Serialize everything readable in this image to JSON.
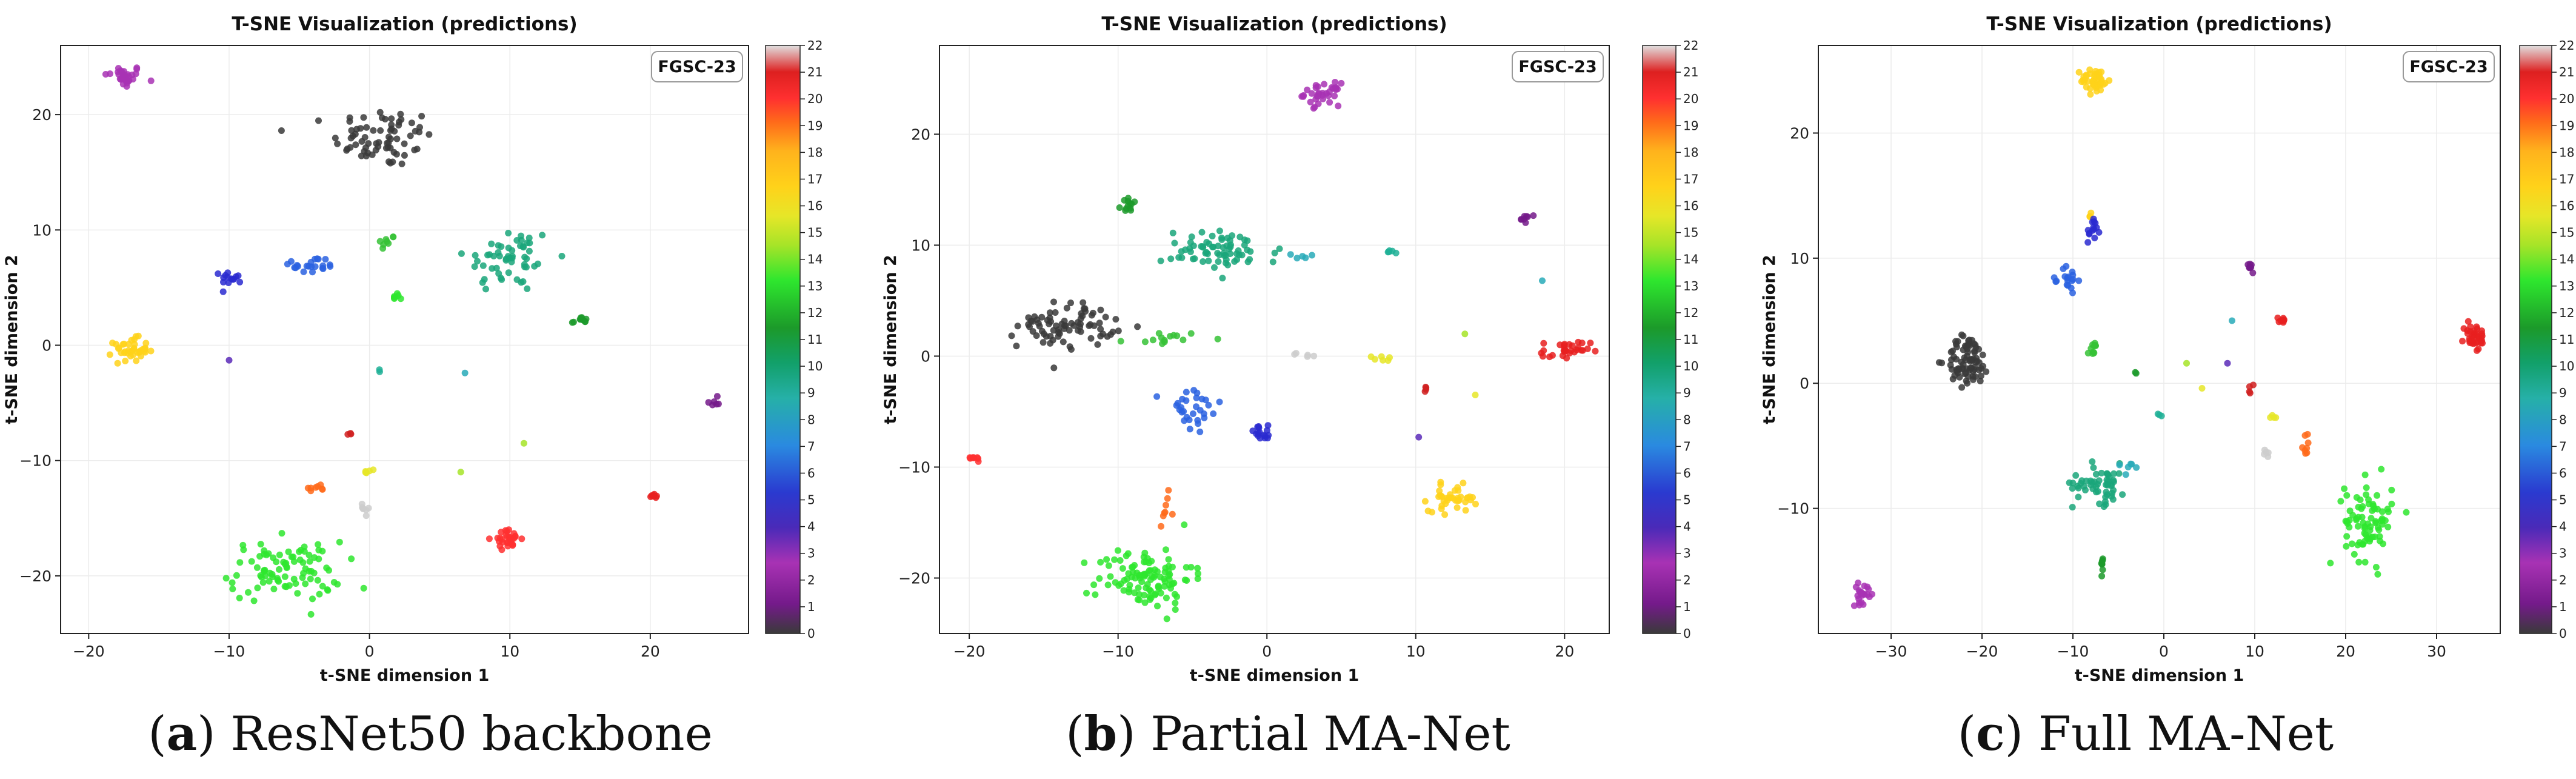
{
  "chart_data": [
    {
      "type": "scatter",
      "title": "T-SNE Visualization (predictions)",
      "xlabel": "t-SNE dimension 1",
      "ylabel": "t-SNE dimension 2",
      "xlim": [
        -22,
        27
      ],
      "ylim": [
        -25,
        26
      ],
      "xticks": [
        -20,
        -10,
        0,
        10,
        20
      ],
      "yticks": [
        -20,
        -10,
        0,
        10,
        20
      ],
      "grid": true,
      "legend": "FGSC-23",
      "legend_position": "top-right",
      "caption_letter": "a",
      "caption": "ResNet50 backbone",
      "colorbar": {
        "min": 0,
        "max": 22,
        "ticks": [
          "0",
          "1",
          "2",
          "3",
          "4",
          "5",
          "6",
          "7",
          "8",
          "9",
          "10",
          "11",
          "12",
          "13",
          "14",
          "15",
          "16",
          "17",
          "18",
          "19",
          "20",
          "21",
          "22"
        ]
      },
      "clusters": [
        {
          "cls": 2,
          "x": -17.5,
          "y": 23.3,
          "sx": 0.7,
          "sy": 0.5,
          "n": 30
        },
        {
          "cls": 0,
          "x": 1.0,
          "y": 18.0,
          "sx": 1.8,
          "sy": 1.3,
          "n": 70
        },
        {
          "cls": 9,
          "x": 10.0,
          "y": 7.5,
          "sx": 1.6,
          "sy": 1.5,
          "n": 55
        },
        {
          "cls": 5,
          "x": -4.2,
          "y": 6.9,
          "sx": 1.0,
          "sy": 0.4,
          "n": 22
        },
        {
          "cls": 4,
          "x": -9.8,
          "y": 5.9,
          "sx": 0.4,
          "sy": 0.3,
          "n": 14
        },
        {
          "cls": 12,
          "x": 1.2,
          "y": 8.9,
          "sx": 0.3,
          "sy": 0.4,
          "n": 8
        },
        {
          "cls": 13,
          "x": 2.0,
          "y": 4.2,
          "sx": 0.3,
          "sy": 0.2,
          "n": 6
        },
        {
          "cls": 11,
          "x": 15.0,
          "y": 2.1,
          "sx": 0.3,
          "sy": 0.2,
          "n": 10
        },
        {
          "cls": 16,
          "x": -17.0,
          "y": -0.4,
          "sx": 0.6,
          "sy": 0.5,
          "n": 40
        },
        {
          "cls": 3,
          "x": -10.0,
          "y": -1.3,
          "sx": 0.1,
          "sy": 0.1,
          "n": 1
        },
        {
          "cls": 8,
          "x": 0.7,
          "y": -2.2,
          "sx": 0.1,
          "sy": 0.1,
          "n": 2
        },
        {
          "cls": 7,
          "x": 6.8,
          "y": -2.4,
          "sx": 0.1,
          "sy": 0.1,
          "n": 1
        },
        {
          "cls": 1,
          "x": 24.5,
          "y": -4.9,
          "sx": 0.2,
          "sy": 0.2,
          "n": 6
        },
        {
          "cls": 21,
          "x": -1.3,
          "y": -7.7,
          "sx": 0.2,
          "sy": 0.1,
          "n": 3
        },
        {
          "cls": 15,
          "x": -0.2,
          "y": -11.0,
          "sx": 0.3,
          "sy": 0.2,
          "n": 5
        },
        {
          "cls": 14,
          "x": 6.5,
          "y": -11.0,
          "sx": 0.1,
          "sy": 0.1,
          "n": 1
        },
        {
          "cls": 14,
          "x": 11.0,
          "y": -8.5,
          "sx": 0.1,
          "sy": 0.1,
          "n": 1
        },
        {
          "cls": 18,
          "x": -3.7,
          "y": -12.4,
          "sx": 0.4,
          "sy": 0.3,
          "n": 8
        },
        {
          "cls": 22,
          "x": -0.1,
          "y": -14.0,
          "sx": 0.2,
          "sy": 0.5,
          "n": 7
        },
        {
          "cls": 19,
          "x": 9.8,
          "y": -16.8,
          "sx": 0.5,
          "sy": 0.4,
          "n": 30
        },
        {
          "cls": 20,
          "x": 20.3,
          "y": -13.0,
          "sx": 0.2,
          "sy": 0.2,
          "n": 8
        },
        {
          "cls": 13,
          "x": -6.0,
          "y": -19.6,
          "sx": 2.0,
          "sy": 1.3,
          "n": 90
        }
      ]
    },
    {
      "type": "scatter",
      "title": "T-SNE Visualization (predictions)",
      "xlabel": "t-SNE dimension 1",
      "ylabel": "t-SNE dimension 2",
      "xlim": [
        -22,
        23
      ],
      "ylim": [
        -25,
        28
      ],
      "xticks": [
        -20,
        -10,
        0,
        10,
        20
      ],
      "yticks": [
        -20,
        -10,
        0,
        10,
        20
      ],
      "grid": true,
      "legend": "FGSC-23",
      "legend_position": "top-right",
      "caption_letter": "b",
      "caption": "Partial MA-Net",
      "colorbar": {
        "min": 0,
        "max": 22,
        "ticks": [
          "0",
          "1",
          "2",
          "3",
          "4",
          "5",
          "6",
          "7",
          "8",
          "9",
          "10",
          "11",
          "12",
          "13",
          "14",
          "15",
          "16",
          "17",
          "18",
          "19",
          "20",
          "21",
          "22"
        ]
      },
      "clusters": [
        {
          "cls": 2,
          "x": 3.7,
          "y": 23.6,
          "sx": 0.6,
          "sy": 0.5,
          "n": 35
        },
        {
          "cls": 11,
          "x": -9.2,
          "y": 13.6,
          "sx": 0.3,
          "sy": 0.3,
          "n": 12
        },
        {
          "cls": 9,
          "x": -3.0,
          "y": 9.5,
          "sx": 2.0,
          "sy": 0.9,
          "n": 70
        },
        {
          "cls": 7,
          "x": 2.5,
          "y": 9.0,
          "sx": 0.5,
          "sy": 0.1,
          "n": 5
        },
        {
          "cls": 8,
          "x": 8.5,
          "y": 9.4,
          "sx": 0.2,
          "sy": 0.1,
          "n": 5
        },
        {
          "cls": 1,
          "x": 17.3,
          "y": 12.4,
          "sx": 0.2,
          "sy": 0.2,
          "n": 8
        },
        {
          "cls": 7,
          "x": 18.5,
          "y": 6.8,
          "sx": 0.1,
          "sy": 0.1,
          "n": 1
        },
        {
          "cls": 0,
          "x": -13.5,
          "y": 2.8,
          "sx": 1.6,
          "sy": 1.0,
          "n": 80
        },
        {
          "cls": 12,
          "x": -6.8,
          "y": 1.6,
          "sx": 1.2,
          "sy": 0.3,
          "n": 14
        },
        {
          "cls": 22,
          "x": 2.8,
          "y": 0.1,
          "sx": 0.4,
          "sy": 0.1,
          "n": 5
        },
        {
          "cls": 15,
          "x": 7.6,
          "y": -0.2,
          "sx": 0.5,
          "sy": 0.1,
          "n": 6
        },
        {
          "cls": 14,
          "x": 13.3,
          "y": 2.0,
          "sx": 0.1,
          "sy": 0.1,
          "n": 1
        },
        {
          "cls": 20,
          "x": 20.1,
          "y": 0.4,
          "sx": 0.8,
          "sy": 0.5,
          "n": 30
        },
        {
          "cls": 19,
          "x": -19.8,
          "y": -9.2,
          "sx": 0.3,
          "sy": 0.1,
          "n": 8
        },
        {
          "cls": 5,
          "x": -5.0,
          "y": -5.0,
          "sx": 1.0,
          "sy": 1.2,
          "n": 30
        },
        {
          "cls": 4,
          "x": -0.3,
          "y": -6.9,
          "sx": 0.5,
          "sy": 0.3,
          "n": 16
        },
        {
          "cls": 21,
          "x": 10.6,
          "y": -3.0,
          "sx": 0.2,
          "sy": 0.3,
          "n": 4
        },
        {
          "cls": 3,
          "x": 10.2,
          "y": -7.3,
          "sx": 0.1,
          "sy": 0.1,
          "n": 1
        },
        {
          "cls": 15,
          "x": 14.0,
          "y": -3.5,
          "sx": 0.1,
          "sy": 0.1,
          "n": 1
        },
        {
          "cls": 16,
          "x": 12.5,
          "y": -12.8,
          "sx": 0.8,
          "sy": 0.6,
          "n": 40
        },
        {
          "cls": 18,
          "x": -6.8,
          "y": -13.8,
          "sx": 0.2,
          "sy": 0.7,
          "n": 8
        },
        {
          "cls": 13,
          "x": -8.2,
          "y": -20.0,
          "sx": 1.6,
          "sy": 1.4,
          "n": 110
        }
      ]
    },
    {
      "type": "scatter",
      "title": "T-SNE Visualization (predictions)",
      "xlabel": "t-SNE dimension 1",
      "ylabel": "t-SNE dimension 2",
      "xlim": [
        -38,
        37
      ],
      "ylim": [
        -20,
        27
      ],
      "xticks": [
        -30,
        -20,
        -10,
        0,
        10,
        20,
        30
      ],
      "yticks": [
        -10,
        0,
        10,
        20
      ],
      "grid": true,
      "legend": "FGSC-23",
      "legend_position": "top-right",
      "caption_letter": "c",
      "caption": "Full MA-Net",
      "colorbar": {
        "min": 0,
        "max": 22,
        "ticks": [
          "0",
          "1",
          "2",
          "3",
          "4",
          "5",
          "6",
          "7",
          "8",
          "9",
          "10",
          "11",
          "12",
          "13",
          "14",
          "15",
          "16",
          "17",
          "18",
          "19",
          "20",
          "21",
          "22"
        ]
      },
      "clusters": [
        {
          "cls": 16,
          "x": -7.5,
          "y": 24.2,
          "sx": 0.8,
          "sy": 0.5,
          "n": 45
        },
        {
          "cls": 16,
          "x": -8.1,
          "y": 13.8,
          "sx": 0.2,
          "sy": 0.4,
          "n": 4
        },
        {
          "cls": 4,
          "x": -7.8,
          "y": 12.2,
          "sx": 0.3,
          "sy": 0.6,
          "n": 14
        },
        {
          "cls": 5,
          "x": -10.5,
          "y": 8.3,
          "sx": 0.5,
          "sy": 0.6,
          "n": 18
        },
        {
          "cls": 1,
          "x": 9.5,
          "y": 9.2,
          "sx": 0.2,
          "sy": 0.2,
          "n": 8
        },
        {
          "cls": 20,
          "x": 13.0,
          "y": 5.0,
          "sx": 0.2,
          "sy": 0.2,
          "n": 8
        },
        {
          "cls": 20,
          "x": 34.2,
          "y": 3.7,
          "sx": 0.6,
          "sy": 0.6,
          "n": 35
        },
        {
          "cls": 0,
          "x": -21.5,
          "y": 1.8,
          "sx": 1.2,
          "sy": 1.0,
          "n": 80
        },
        {
          "cls": 12,
          "x": -7.8,
          "y": 2.7,
          "sx": 0.3,
          "sy": 0.3,
          "n": 10
        },
        {
          "cls": 11,
          "x": -3.0,
          "y": 0.8,
          "sx": 0.1,
          "sy": 0.1,
          "n": 2
        },
        {
          "cls": 14,
          "x": 2.5,
          "y": 1.6,
          "sx": 0.1,
          "sy": 0.1,
          "n": 1
        },
        {
          "cls": 15,
          "x": 4.2,
          "y": -0.4,
          "sx": 0.1,
          "sy": 0.1,
          "n": 1
        },
        {
          "cls": 3,
          "x": 7.0,
          "y": 1.6,
          "sx": 0.1,
          "sy": 0.1,
          "n": 1
        },
        {
          "cls": 7,
          "x": 7.5,
          "y": 5.0,
          "sx": 0.1,
          "sy": 0.1,
          "n": 1
        },
        {
          "cls": 8,
          "x": -0.5,
          "y": -2.5,
          "sx": 0.2,
          "sy": 0.1,
          "n": 3
        },
        {
          "cls": 21,
          "x": 9.6,
          "y": -0.4,
          "sx": 0.2,
          "sy": 0.2,
          "n": 4
        },
        {
          "cls": 15,
          "x": 12.0,
          "y": -2.8,
          "sx": 0.2,
          "sy": 0.2,
          "n": 4
        },
        {
          "cls": 18,
          "x": 15.5,
          "y": -4.8,
          "sx": 0.6,
          "sy": 0.6,
          "n": 8
        },
        {
          "cls": 22,
          "x": 11.2,
          "y": -5.4,
          "sx": 0.3,
          "sy": 0.3,
          "n": 5
        },
        {
          "cls": 9,
          "x": -7.0,
          "y": -8.0,
          "sx": 1.5,
          "sy": 0.8,
          "n": 55
        },
        {
          "cls": 7,
          "x": -3.5,
          "y": -6.5,
          "sx": 0.8,
          "sy": 0.4,
          "n": 6
        },
        {
          "cls": 11,
          "x": -6.8,
          "y": -14.5,
          "sx": 0.2,
          "sy": 0.4,
          "n": 8
        },
        {
          "cls": 13,
          "x": 22.5,
          "y": -11.0,
          "sx": 1.3,
          "sy": 1.6,
          "n": 80
        },
        {
          "cls": 2,
          "x": -33.0,
          "y": -16.8,
          "sx": 0.6,
          "sy": 0.4,
          "n": 22
        }
      ]
    }
  ],
  "class_colors": [
    "#3a3a3a",
    "#741a8a",
    "#a832b4",
    "#5a2ab8",
    "#2a2ad0",
    "#2a62e0",
    "#2690da",
    "#28aab8",
    "#20b096",
    "#1aa67a",
    "#12a06a",
    "#1c9a2a",
    "#36c236",
    "#2ee62e",
    "#a6e428",
    "#e6e628",
    "#ffd21a",
    "#ffb31c",
    "#ff6a1a",
    "#ff3030",
    "#e82020",
    "#d02020",
    "#cccccc"
  ]
}
